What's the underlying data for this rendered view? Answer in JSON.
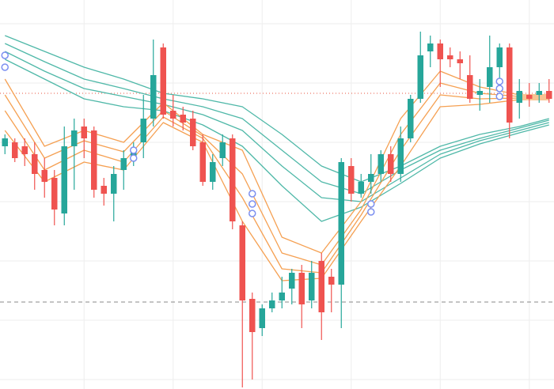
{
  "chart_data": {
    "type": "candlestick",
    "xlim": [
      -0.5,
      55.5
    ],
    "ylim": [
      0,
      492
    ],
    "grid": true,
    "grid_color": "#eeeeee",
    "xticks": [
      8,
      17,
      26,
      35,
      44,
      53
    ],
    "yticks": [
      12,
      87,
      162,
      237,
      312,
      387,
      462
    ],
    "up_color": "#26a69a",
    "down_color": "#ef5350",
    "open": [
      307,
      312,
      307,
      297,
      277,
      267,
      222,
      307,
      332,
      327,
      257,
      247,
      277,
      292,
      312,
      342,
      432,
      352,
      347,
      342,
      312,
      262,
      292,
      317,
      207,
      114,
      77,
      102,
      112,
      127,
      147,
      112,
      162,
      142,
      132,
      282,
      247,
      262,
      272,
      297,
      272,
      317,
      367,
      427,
      437,
      422,
      417,
      397,
      372,
      382,
      407,
      432,
      362,
      372,
      372,
      377
    ],
    "high": [
      322,
      317,
      317,
      312,
      292,
      277,
      332,
      342,
      342,
      332,
      267,
      282,
      302,
      312,
      372,
      442,
      437,
      372,
      357,
      352,
      322,
      297,
      322,
      322,
      212,
      122,
      107,
      122,
      142,
      152,
      157,
      162,
      172,
      152,
      292,
      292,
      272,
      297,
      302,
      307,
      332,
      372,
      452,
      447,
      442,
      432,
      427,
      422,
      392,
      447,
      437,
      437,
      392,
      387,
      387,
      392
    ],
    "low": [
      297,
      287,
      282,
      252,
      242,
      207,
      207,
      252,
      292,
      242,
      232,
      212,
      252,
      282,
      292,
      332,
      342,
      332,
      327,
      302,
      257,
      252,
      282,
      202,
      2,
      12,
      67,
      97,
      102,
      107,
      77,
      102,
      62,
      97,
      77,
      237,
      242,
      247,
      262,
      262,
      262,
      312,
      362,
      407,
      382,
      407,
      392,
      362,
      352,
      362,
      392,
      317,
      342,
      357,
      362,
      362
    ],
    "close": [
      317,
      292,
      297,
      272,
      262,
      227,
      307,
      327,
      317,
      252,
      247,
      272,
      292,
      302,
      342,
      397,
      347,
      342,
      337,
      307,
      262,
      287,
      312,
      212,
      112,
      72,
      102,
      112,
      122,
      147,
      107,
      147,
      97,
      132,
      287,
      247,
      262,
      272,
      297,
      272,
      317,
      367,
      422,
      437,
      417,
      417,
      412,
      367,
      377,
      407,
      432,
      337,
      377,
      367,
      377,
      367
    ],
    "series": [
      {
        "color": "#4fb8a8",
        "x": [
          0,
          4,
          8,
          12,
          16,
          20,
          24,
          28,
          32,
          36,
          40,
          44,
          48,
          52,
          55
        ],
        "values": [
          447,
          427,
          407,
          392,
          374,
          367,
          357,
          322,
          282,
          262,
          282,
          307,
          322,
          332,
          342
        ]
      },
      {
        "color": "#4fb8a8",
        "x": [
          0,
          4,
          8,
          12,
          16,
          20,
          24,
          28,
          32,
          36,
          40,
          44,
          48,
          52,
          55
        ],
        "values": [
          437,
          414,
          392,
          380,
          367,
          357,
          342,
          302,
          262,
          247,
          277,
          302,
          317,
          330,
          340
        ]
      },
      {
        "color": "#4fb8a8",
        "x": [
          0,
          4,
          8,
          12,
          16,
          20,
          24,
          28,
          32,
          36,
          40,
          44,
          48,
          52,
          55
        ],
        "values": [
          427,
          402,
          380,
          370,
          360,
          347,
          327,
          282,
          242,
          237,
          267,
          297,
          314,
          327,
          337
        ]
      },
      {
        "color": "#4fb8a8",
        "x": [
          0,
          4,
          8,
          12,
          16,
          20,
          24,
          28,
          32,
          36,
          40,
          44,
          48,
          52,
          55
        ],
        "values": [
          417,
          392,
          367,
          357,
          352,
          334,
          307,
          257,
          212,
          230,
          260,
          292,
          310,
          324,
          334
        ]
      },
      {
        "color": "#f5a052",
        "x": [
          0,
          4,
          8,
          12,
          16,
          20,
          24,
          28,
          32,
          36,
          40,
          44,
          48,
          52,
          55
        ],
        "values": [
          392,
          307,
          327,
          312,
          362,
          322,
          302,
          192,
          172,
          237,
          342,
          402,
          382,
          372,
          372
        ]
      },
      {
        "color": "#f5a052",
        "x": [
          0,
          4,
          8,
          12,
          16,
          20,
          24,
          28,
          32,
          36,
          40,
          44,
          48,
          52,
          55
        ],
        "values": [
          372,
          292,
          314,
          300,
          352,
          320,
          272,
          172,
          157,
          227,
          322,
          387,
          374,
          370,
          370
        ]
      },
      {
        "color": "#f5a052",
        "x": [
          0,
          4,
          8,
          12,
          16,
          20,
          24,
          28,
          32,
          36,
          40,
          44,
          48,
          52,
          55
        ],
        "values": [
          352,
          277,
          302,
          287,
          344,
          317,
          242,
          152,
          147,
          220,
          302,
          372,
          367,
          368,
          368
        ]
      },
      {
        "color": "#f5a052",
        "x": [
          0,
          4,
          8,
          12,
          16,
          20,
          24,
          28,
          32,
          36,
          40,
          44,
          48,
          52,
          55
        ],
        "values": [
          327,
          262,
          287,
          277,
          337,
          312,
          212,
          137,
          140,
          212,
          282,
          357,
          360,
          366,
          366
        ]
      }
    ],
    "signals": {
      "color": "#7b8ff0",
      "x": [
        0,
        0,
        13,
        13,
        25,
        25,
        25,
        37,
        37,
        50,
        50,
        50
      ],
      "values": [
        422,
        407,
        302,
        292,
        247,
        234,
        222,
        234,
        224,
        389,
        380,
        370
      ]
    },
    "reference_lines": [
      {
        "value": 374,
        "color": "#e8553f",
        "style": "dotted"
      },
      {
        "value": 110,
        "color": "#888888",
        "style": "dashed"
      }
    ]
  }
}
